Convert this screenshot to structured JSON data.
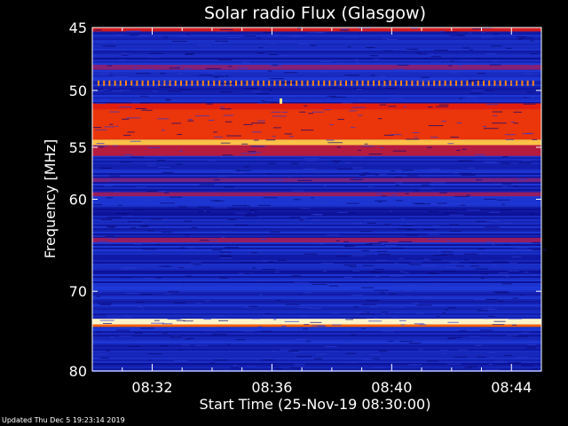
{
  "chart_data": {
    "type": "heatmap",
    "title": "Solar radio Flux (Glasgow)",
    "xlabel": "Start Time (25-Nov-19 08:30:00)",
    "ylabel": "Frequency [MHz]",
    "x_tick_labels": [
      "08:32",
      "08:36",
      "08:40",
      "08:44"
    ],
    "x_tick_minutes": [
      2,
      6,
      10,
      14
    ],
    "xlim_minutes": [
      0,
      15
    ],
    "y_tick_labels": [
      "45",
      "50",
      "55",
      "60",
      "70",
      "80"
    ],
    "y_ticks": [
      45,
      50,
      55,
      60,
      70,
      80
    ],
    "ylim": [
      45,
      80
    ],
    "y_scale": "log",
    "colormap": [
      "#000000",
      "#0a0a8c",
      "#1f3cdc",
      "#8a1e6e",
      "#e01a10",
      "#ff6a00",
      "#ffe060",
      "#ffffff"
    ],
    "background_level": 0.22,
    "bands": [
      {
        "from": 45.0,
        "to": 45.3,
        "level": 0.55
      },
      {
        "from": 47.9,
        "to": 48.3,
        "level": 0.42
      },
      {
        "from": 51.1,
        "to": 51.6,
        "level": 0.58
      },
      {
        "from": 51.6,
        "to": 54.3,
        "level": 0.62
      },
      {
        "from": 54.3,
        "to": 54.8,
        "level": 0.82
      },
      {
        "from": 54.8,
        "to": 55.8,
        "level": 0.5
      },
      {
        "from": 57.9,
        "to": 58.3,
        "level": 0.4
      },
      {
        "from": 59.3,
        "to": 59.7,
        "level": 0.45
      },
      {
        "from": 64.0,
        "to": 64.5,
        "level": 0.45
      },
      {
        "from": 73.3,
        "to": 74.0,
        "level": 0.95
      },
      {
        "from": 74.0,
        "to": 74.3,
        "level": 0.7
      }
    ],
    "dashed_band": {
      "frequency": 49.4,
      "level": 0.75
    },
    "spot": {
      "minute": 6.3,
      "frequency": 50.9,
      "level": 0.9
    }
  },
  "footer": {
    "updated": "Updated Thu Dec  5 19:23:14 2019"
  }
}
